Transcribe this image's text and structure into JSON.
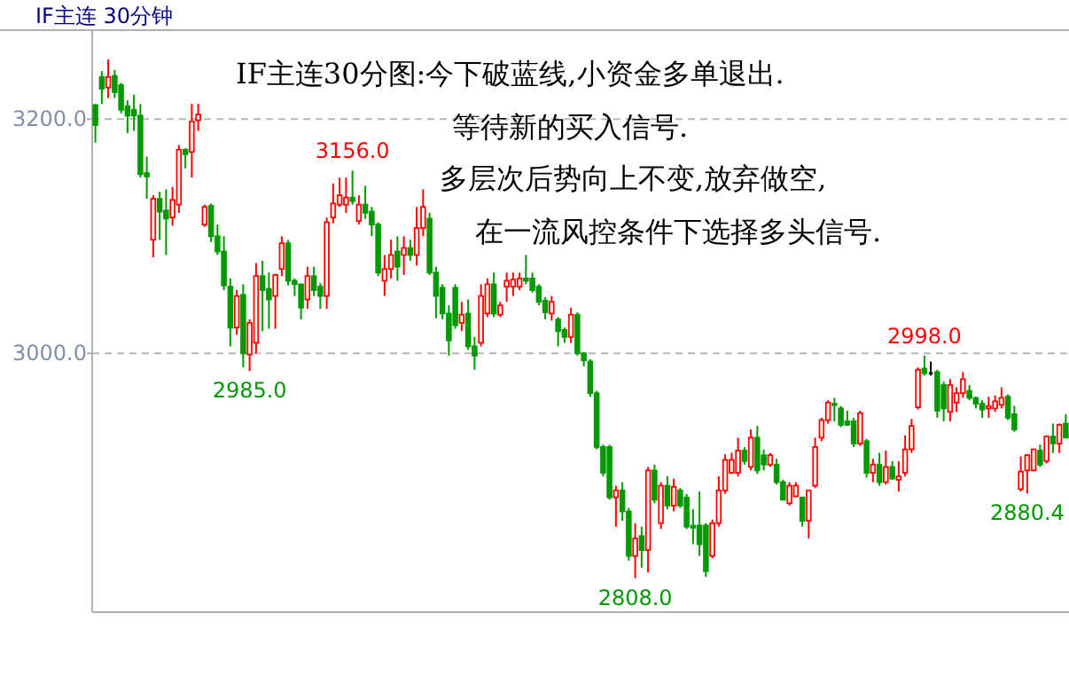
{
  "chart_data": {
    "type": "candlestick",
    "title": "IF主连 30分钟",
    "annotations": [
      "IF主连30分图:今下破蓝线,小资金多单退出.",
      "等待新的买入信号.",
      "多层次后势向上不变,放弃做空,",
      "在一流风控条件下选择多头信号.",
      "3156.0",
      "2985.0",
      "2808.0",
      "2998.0",
      "2880.4"
    ],
    "ylim": [
      2779,
      3276
    ],
    "yticks": [
      {
        "value": 3000,
        "label": "3000.0"
      },
      {
        "value": 3200,
        "label": "3200.0"
      }
    ],
    "grid": "y",
    "tick_labels": "y",
    "categories": [
      null,
      null,
      null,
      null,
      null,
      null,
      null,
      null,
      null,
      null,
      null,
      null,
      null,
      null,
      null,
      null,
      null,
      null,
      null,
      null,
      null,
      null,
      null,
      null,
      null,
      null,
      null,
      null,
      null,
      null,
      null,
      null,
      null,
      null,
      null,
      null,
      null,
      null,
      null,
      null,
      null,
      null,
      null,
      null,
      null,
      null,
      null,
      null,
      null,
      null,
      null,
      null,
      null,
      null,
      null,
      null,
      null,
      null,
      null,
      null,
      null,
      null,
      null,
      null,
      null,
      null,
      null,
      null,
      null,
      null,
      null,
      null,
      null,
      null,
      null,
      null,
      null,
      null,
      null,
      null,
      null,
      null,
      null,
      null,
      null,
      null,
      null,
      null,
      null,
      null,
      null,
      null,
      null,
      null,
      null,
      null,
      null,
      null,
      null,
      null,
      null,
      null,
      null,
      null,
      null,
      null,
      null,
      null,
      null,
      null,
      null,
      null,
      null,
      null,
      null,
      null,
      null,
      null,
      null,
      null,
      null,
      null,
      null,
      null,
      null,
      null,
      null,
      null,
      null,
      null,
      null,
      null,
      null,
      null,
      null,
      null,
      null,
      null,
      null,
      null,
      null,
      null,
      null,
      null,
      null,
      null,
      null,
      null,
      null,
      null,
      null,
      null
    ],
    "ohlc": [
      [
        3212,
        3213,
        3180,
        3195
      ],
      [
        3236,
        3241,
        3213,
        3226
      ],
      [
        3227,
        3251,
        3218,
        3236
      ],
      [
        3237,
        3242,
        3218,
        3223
      ],
      [
        3229,
        3231,
        3205,
        3208
      ],
      [
        3211,
        3216,
        3188,
        3203
      ],
      [
        3208,
        3221,
        3190,
        3203
      ],
      [
        3203,
        3213,
        3150,
        3153
      ],
      [
        3154,
        3168,
        3132,
        3151
      ],
      [
        3097,
        3135,
        3082,
        3132
      ],
      [
        3132,
        3138,
        3097,
        3121
      ],
      [
        3122,
        3140,
        3084,
        3115
      ],
      [
        3116,
        3142,
        3109,
        3131
      ],
      [
        3127,
        3178,
        3120,
        3174
      ],
      [
        3174,
        3175,
        3158,
        3170
      ],
      [
        3172,
        3213,
        3150,
        3198
      ],
      [
        3199,
        3213,
        3190,
        3204
      ],
      [
        3110,
        3127,
        3108,
        3125
      ],
      [
        3126,
        3128,
        3095,
        3100
      ],
      [
        3100,
        3110,
        3084,
        3087
      ],
      [
        3087,
        3100,
        3054,
        3058
      ],
      [
        3057,
        3064,
        3006,
        3022
      ],
      [
        3022,
        3054,
        3016,
        3049
      ],
      [
        3050,
        3059,
        2988,
        3000
      ],
      [
        2999,
        3029,
        2985,
        3026
      ],
      [
        3009,
        3077,
        3000,
        3066
      ],
      [
        3066,
        3079,
        3019,
        3054
      ],
      [
        3055,
        3069,
        3021,
        3046
      ],
      [
        3049,
        3068,
        3021,
        3067
      ],
      [
        3072,
        3100,
        3066,
        3094
      ],
      [
        3094,
        3097,
        3058,
        3062
      ],
      [
        3062,
        3064,
        3049,
        3059
      ],
      [
        3059,
        3059,
        3029,
        3039
      ],
      [
        3046,
        3074,
        3038,
        3066
      ],
      [
        3066,
        3074,
        3049,
        3054
      ],
      [
        3057,
        3060,
        3038,
        3049
      ],
      [
        3049,
        3116,
        3038,
        3112
      ],
      [
        3116,
        3145,
        3111,
        3128
      ],
      [
        3127,
        3150,
        3125,
        3135
      ],
      [
        3127,
        3150,
        3120,
        3133
      ],
      [
        3133,
        3156,
        3127,
        3130
      ],
      [
        3113,
        3135,
        3110,
        3127
      ],
      [
        3127,
        3143,
        3115,
        3120
      ],
      [
        3121,
        3125,
        3100,
        3110
      ],
      [
        3110,
        3112,
        3066,
        3069
      ],
      [
        3062,
        3084,
        3049,
        3072
      ],
      [
        3072,
        3097,
        3064,
        3084
      ],
      [
        3087,
        3100,
        3062,
        3074
      ],
      [
        3084,
        3100,
        3067,
        3090
      ],
      [
        3090,
        3097,
        3079,
        3084
      ],
      [
        3084,
        3125,
        3075,
        3107
      ],
      [
        3107,
        3140,
        3100,
        3125
      ],
      [
        3115,
        3120,
        3067,
        3069
      ],
      [
        3069,
        3074,
        3030,
        3049
      ],
      [
        3056,
        3059,
        3029,
        3034
      ],
      [
        3034,
        3041,
        2998,
        3011
      ],
      [
        3056,
        3059,
        3021,
        3024
      ],
      [
        3026,
        3044,
        3019,
        3033
      ],
      [
        3034,
        3046,
        3003,
        3006
      ],
      [
        3006,
        3014,
        2986,
        2998
      ],
      [
        3009,
        3059,
        3006,
        3049
      ],
      [
        3034,
        3064,
        3031,
        3059
      ],
      [
        3059,
        3069,
        3031,
        3034
      ],
      [
        3033,
        3044,
        3031,
        3041
      ],
      [
        3057,
        3069,
        3044,
        3062
      ],
      [
        3057,
        3069,
        3049,
        3063
      ],
      [
        3057,
        3069,
        3054,
        3064
      ],
      [
        3064,
        3084,
        3059,
        3062
      ],
      [
        3064,
        3069,
        3052,
        3054
      ],
      [
        3057,
        3059,
        3041,
        3044
      ],
      [
        3045,
        3048,
        3029,
        3035
      ],
      [
        3034,
        3049,
        3028,
        3044
      ],
      [
        3029,
        3031,
        3006,
        3019
      ],
      [
        3020,
        3022,
        3009,
        3014
      ],
      [
        3014,
        3039,
        3009,
        3033
      ],
      [
        3033,
        3035,
        2998,
        3000
      ],
      [
        3000,
        3001,
        2989,
        2994
      ],
      [
        2993,
        2995,
        2963,
        2966
      ],
      [
        2966,
        2968,
        2918,
        2920
      ],
      [
        2920,
        2922,
        2895,
        2898
      ],
      [
        2920,
        2922,
        2875,
        2877
      ],
      [
        2877,
        2887,
        2852,
        2883
      ],
      [
        2883,
        2890,
        2857,
        2865
      ],
      [
        2865,
        2868,
        2823,
        2827
      ],
      [
        2827,
        2855,
        2808,
        2842
      ],
      [
        2844,
        2852,
        2817,
        2832
      ],
      [
        2832,
        2903,
        2813,
        2900
      ],
      [
        2900,
        2905,
        2872,
        2875
      ],
      [
        2855,
        2890,
        2850,
        2887
      ],
      [
        2887,
        2895,
        2867,
        2870
      ],
      [
        2870,
        2893,
        2865,
        2886
      ],
      [
        2883,
        2885,
        2868,
        2870
      ],
      [
        2877,
        2880,
        2850,
        2852
      ],
      [
        2853,
        2867,
        2837,
        2851
      ],
      [
        2853,
        2882,
        2827,
        2837
      ],
      [
        2853,
        2855,
        2809,
        2814
      ],
      [
        2827,
        2858,
        2825,
        2855
      ],
      [
        2855,
        2895,
        2852,
        2883
      ],
      [
        2883,
        2914,
        2880,
        2909
      ],
      [
        2898,
        2915,
        2897,
        2909
      ],
      [
        2898,
        2928,
        2895,
        2917
      ],
      [
        2917,
        2920,
        2905,
        2908
      ],
      [
        2903,
        2935,
        2900,
        2928
      ],
      [
        2928,
        2938,
        2897,
        2900
      ],
      [
        2913,
        2918,
        2900,
        2905
      ],
      [
        2905,
        2915,
        2903,
        2913
      ],
      [
        2905,
        2910,
        2888,
        2890
      ],
      [
        2890,
        2892,
        2875,
        2875
      ],
      [
        2872,
        2890,
        2870,
        2887
      ],
      [
        2878,
        2890,
        2877,
        2887
      ],
      [
        2877,
        2877,
        2852,
        2857
      ],
      [
        2857,
        2883,
        2842,
        2883
      ],
      [
        2887,
        2928,
        2885,
        2920
      ],
      [
        2928,
        2945,
        2925,
        2943
      ],
      [
        2943,
        2960,
        2940,
        2958
      ],
      [
        2957,
        2962,
        2942,
        2956
      ],
      [
        2953,
        2955,
        2937,
        2939
      ],
      [
        2942,
        2951,
        2938,
        2939
      ],
      [
        2942,
        2945,
        2920,
        2923
      ],
      [
        2923,
        2951,
        2921,
        2949
      ],
      [
        2925,
        2927,
        2894,
        2898
      ],
      [
        2898,
        2910,
        2890,
        2905
      ],
      [
        2905,
        2915,
        2887,
        2890
      ],
      [
        2890,
        2917,
        2888,
        2903
      ],
      [
        2903,
        2908,
        2892,
        2893
      ],
      [
        2892,
        2908,
        2882,
        2895
      ],
      [
        2898,
        2930,
        2895,
        2918
      ],
      [
        2918,
        2944,
        2915,
        2938
      ],
      [
        2954,
        2988,
        2952,
        2986
      ],
      [
        2987,
        2998,
        2981,
        2983
      ],
      [
        2983,
        2993,
        2981,
        2983
      ],
      [
        2984,
        2986,
        2945,
        2951
      ],
      [
        2973,
        2976,
        2942,
        2953
      ],
      [
        2950,
        2978,
        2942,
        2973
      ],
      [
        2958,
        2971,
        2950,
        2966
      ],
      [
        2966,
        2984,
        2962,
        2978
      ],
      [
        2968,
        2973,
        2960,
        2962
      ],
      [
        2962,
        2963,
        2953,
        2957
      ],
      [
        2957,
        2960,
        2945,
        2952
      ],
      [
        2953,
        2963,
        2945,
        2955
      ],
      [
        2953,
        2964,
        2950,
        2959
      ],
      [
        2956,
        2971,
        2953,
        2962
      ],
      [
        2963,
        2965,
        2943,
        2945
      ],
      [
        2948,
        2955,
        2933,
        2935
      ],
      [
        2884,
        2912,
        2882,
        2899
      ],
      [
        2900,
        2914,
        2880.4,
        2913
      ],
      [
        2900,
        2918,
        2900,
        2918
      ],
      [
        2917,
        2922,
        2903,
        2905
      ],
      [
        2908,
        2930,
        2906,
        2929
      ],
      [
        2929,
        2940,
        2915,
        2923
      ],
      [
        2923,
        2940,
        2915,
        2939
      ],
      [
        2940,
        2948,
        2928,
        2928
      ]
    ]
  }
}
